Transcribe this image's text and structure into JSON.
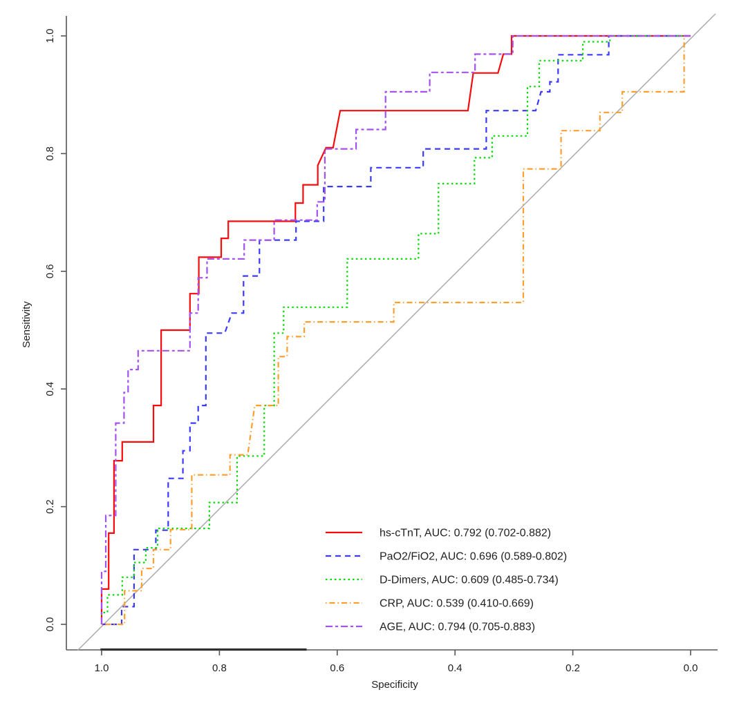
{
  "figure": {
    "background": "#ffffff",
    "axis_color": "#555555",
    "text_color": "#1f1f1f"
  },
  "chart_data": {
    "type": "line",
    "subtype": "roc-curves",
    "title": "",
    "grid": false,
    "legend_position": "inside-bottom-right",
    "x_axis": {
      "label": "Specificity",
      "ticks": [
        "1.0",
        "0.8",
        "0.6",
        "0.4",
        "0.2",
        "0.0"
      ],
      "tick_values": [
        1.0,
        0.8,
        0.6,
        0.4,
        0.2,
        0.0
      ],
      "reversed": true,
      "range": [
        1.05,
        -0.05
      ]
    },
    "y_axis": {
      "label": "Sensitivity",
      "ticks": [
        "0.0",
        "0.2",
        "0.4",
        "0.6",
        "0.8",
        "1.0"
      ],
      "tick_values": [
        0.0,
        0.2,
        0.4,
        0.6,
        0.8,
        1.0
      ],
      "range": [
        -0.05,
        1.05
      ]
    },
    "reference_line": {
      "type": "diagonal-chance-line",
      "color": "#ABABAB"
    },
    "baseline_segment": {
      "spec_from": 1.002,
      "spec_to": 0.652,
      "color": "#2F2F2F",
      "note": "dark thick segment drawn over x-axis"
    },
    "series": [
      {
        "name": "hs-cTnT",
        "legend_label": "hs-cTnT, AUC: 0.792 (0.702-0.882)",
        "auc": 0.792,
        "ci_low": 0.702,
        "ci_high": 0.882,
        "color": "#FA0A0A",
        "linetype": "solid",
        "points": [
          [
            1,
            0
          ],
          [
            1,
            0.06
          ],
          [
            0.988,
            0.06
          ],
          [
            0.988,
            0.155
          ],
          [
            0.979,
            0.155
          ],
          [
            0.979,
            0.278
          ],
          [
            0.965,
            0.278
          ],
          [
            0.965,
            0.31
          ],
          [
            0.912,
            0.31
          ],
          [
            0.912,
            0.372
          ],
          [
            0.899,
            0.372
          ],
          [
            0.899,
            0.5
          ],
          [
            0.85,
            0.5
          ],
          [
            0.85,
            0.562
          ],
          [
            0.835,
            0.562
          ],
          [
            0.835,
            0.624
          ],
          [
            0.797,
            0.624
          ],
          [
            0.797,
            0.656
          ],
          [
            0.785,
            0.656
          ],
          [
            0.785,
            0.685
          ],
          [
            0.671,
            0.685
          ],
          [
            0.671,
            0.716
          ],
          [
            0.658,
            0.716
          ],
          [
            0.658,
            0.747
          ],
          [
            0.633,
            0.747
          ],
          [
            0.633,
            0.78
          ],
          [
            0.619,
            0.81
          ],
          [
            0.607,
            0.81
          ],
          [
            0.595,
            0.873
          ],
          [
            0.378,
            0.873
          ],
          [
            0.369,
            0.937
          ],
          [
            0.327,
            0.937
          ],
          [
            0.318,
            0.969
          ],
          [
            0.304,
            0.969
          ],
          [
            0.304,
            1
          ],
          [
            0,
            1
          ]
        ]
      },
      {
        "name": "PaO2/FiO2",
        "legend_label": "PaO2/FiO2, AUC: 0.696 (0.589-0.802)",
        "auc": 0.696,
        "ci_low": 0.589,
        "ci_high": 0.802,
        "color": "#3939FF",
        "linetype": "dashed",
        "points": [
          [
            1,
            0
          ],
          [
            0.966,
            0
          ],
          [
            0.966,
            0.03
          ],
          [
            0.945,
            0.03
          ],
          [
            0.945,
            0.127
          ],
          [
            0.908,
            0.127
          ],
          [
            0.908,
            0.16
          ],
          [
            0.887,
            0.16
          ],
          [
            0.887,
            0.248
          ],
          [
            0.862,
            0.248
          ],
          [
            0.862,
            0.295
          ],
          [
            0.85,
            0.295
          ],
          [
            0.85,
            0.342
          ],
          [
            0.836,
            0.342
          ],
          [
            0.836,
            0.372
          ],
          [
            0.823,
            0.372
          ],
          [
            0.823,
            0.495
          ],
          [
            0.791,
            0.495
          ],
          [
            0.779,
            0.529
          ],
          [
            0.759,
            0.529
          ],
          [
            0.759,
            0.592
          ],
          [
            0.732,
            0.592
          ],
          [
            0.732,
            0.653
          ],
          [
            0.67,
            0.653
          ],
          [
            0.67,
            0.685
          ],
          [
            0.623,
            0.685
          ],
          [
            0.623,
            0.744
          ],
          [
            0.543,
            0.744
          ],
          [
            0.543,
            0.776
          ],
          [
            0.454,
            0.776
          ],
          [
            0.454,
            0.808
          ],
          [
            0.347,
            0.808
          ],
          [
            0.347,
            0.873
          ],
          [
            0.263,
            0.873
          ],
          [
            0.254,
            0.905
          ],
          [
            0.239,
            0.905
          ],
          [
            0.239,
            0.922
          ],
          [
            0.225,
            0.922
          ],
          [
            0.225,
            0.968
          ],
          [
            0.139,
            0.968
          ],
          [
            0.139,
            1
          ],
          [
            0,
            1
          ]
        ]
      },
      {
        "name": "D-Dimers",
        "legend_label": "D-Dimers, AUC: 0.609 (0.485-0.734)",
        "auc": 0.609,
        "ci_low": 0.485,
        "ci_high": 0.734,
        "color": "#00DC00",
        "linetype": "dotted",
        "points": [
          [
            1,
            0
          ],
          [
            1,
            0.02
          ],
          [
            0.99,
            0.02
          ],
          [
            0.99,
            0.05
          ],
          [
            0.965,
            0.05
          ],
          [
            0.965,
            0.08
          ],
          [
            0.945,
            0.08
          ],
          [
            0.945,
            0.105
          ],
          [
            0.925,
            0.105
          ],
          [
            0.925,
            0.13
          ],
          [
            0.905,
            0.13
          ],
          [
            0.905,
            0.163
          ],
          [
            0.817,
            0.163
          ],
          [
            0.817,
            0.207
          ],
          [
            0.77,
            0.207
          ],
          [
            0.77,
            0.286
          ],
          [
            0.724,
            0.286
          ],
          [
            0.724,
            0.372
          ],
          [
            0.707,
            0.372
          ],
          [
            0.707,
            0.495
          ],
          [
            0.691,
            0.495
          ],
          [
            0.691,
            0.539
          ],
          [
            0.583,
            0.539
          ],
          [
            0.583,
            0.621
          ],
          [
            0.462,
            0.621
          ],
          [
            0.462,
            0.664
          ],
          [
            0.428,
            0.664
          ],
          [
            0.428,
            0.749
          ],
          [
            0.367,
            0.749
          ],
          [
            0.367,
            0.793
          ],
          [
            0.337,
            0.793
          ],
          [
            0.337,
            0.83
          ],
          [
            0.277,
            0.83
          ],
          [
            0.277,
            0.914
          ],
          [
            0.257,
            0.914
          ],
          [
            0.257,
            0.958
          ],
          [
            0.183,
            0.958
          ],
          [
            0.183,
            0.99
          ],
          [
            0.137,
            0.99
          ],
          [
            0.137,
            1
          ],
          [
            0,
            1
          ]
        ]
      },
      {
        "name": "CRP",
        "legend_label": "CRP, AUC: 0.539 (0.410-0.669)",
        "auc": 0.539,
        "ci_low": 0.41,
        "ci_high": 0.669,
        "color": "#FF9E2C",
        "linetype": "dotdash",
        "points": [
          [
            1,
            0
          ],
          [
            0.961,
            0
          ],
          [
            0.961,
            0.057
          ],
          [
            0.932,
            0.057
          ],
          [
            0.932,
            0.095
          ],
          [
            0.912,
            0.095
          ],
          [
            0.912,
            0.127
          ],
          [
            0.883,
            0.127
          ],
          [
            0.883,
            0.161
          ],
          [
            0.847,
            0.161
          ],
          [
            0.847,
            0.254
          ],
          [
            0.782,
            0.254
          ],
          [
            0.782,
            0.288
          ],
          [
            0.752,
            0.288
          ],
          [
            0.74,
            0.372
          ],
          [
            0.7,
            0.372
          ],
          [
            0.7,
            0.455
          ],
          [
            0.685,
            0.455
          ],
          [
            0.685,
            0.489
          ],
          [
            0.656,
            0.489
          ],
          [
            0.656,
            0.514
          ],
          [
            0.504,
            0.514
          ],
          [
            0.504,
            0.547
          ],
          [
            0.284,
            0.547
          ],
          [
            0.284,
            0.774
          ],
          [
            0.22,
            0.774
          ],
          [
            0.22,
            0.839
          ],
          [
            0.154,
            0.839
          ],
          [
            0.154,
            0.87
          ],
          [
            0.116,
            0.87
          ],
          [
            0.116,
            0.905
          ],
          [
            0.011,
            0.905
          ],
          [
            0.011,
            1
          ],
          [
            0,
            1
          ]
        ]
      },
      {
        "name": "AGE",
        "legend_label": "AGE, AUC: 0.794 (0.705-0.883)",
        "auc": 0.794,
        "ci_low": 0.705,
        "ci_high": 0.883,
        "color": "#A551EE",
        "linetype": "twodash",
        "points": [
          [
            1,
            0
          ],
          [
            1,
            0.09
          ],
          [
            0.993,
            0.09
          ],
          [
            0.993,
            0.185
          ],
          [
            0.976,
            0.185
          ],
          [
            0.976,
            0.342
          ],
          [
            0.962,
            0.342
          ],
          [
            0.962,
            0.394
          ],
          [
            0.955,
            0.394
          ],
          [
            0.955,
            0.433
          ],
          [
            0.938,
            0.433
          ],
          [
            0.938,
            0.465
          ],
          [
            0.85,
            0.465
          ],
          [
            0.85,
            0.529
          ],
          [
            0.836,
            0.529
          ],
          [
            0.836,
            0.589
          ],
          [
            0.821,
            0.589
          ],
          [
            0.821,
            0.621
          ],
          [
            0.758,
            0.621
          ],
          [
            0.758,
            0.653
          ],
          [
            0.707,
            0.653
          ],
          [
            0.707,
            0.687
          ],
          [
            0.634,
            0.687
          ],
          [
            0.634,
            0.718
          ],
          [
            0.621,
            0.718
          ],
          [
            0.621,
            0.808
          ],
          [
            0.568,
            0.808
          ],
          [
            0.568,
            0.841
          ],
          [
            0.518,
            0.841
          ],
          [
            0.518,
            0.905
          ],
          [
            0.443,
            0.905
          ],
          [
            0.443,
            0.938
          ],
          [
            0.366,
            0.938
          ],
          [
            0.366,
            0.969
          ],
          [
            0.302,
            0.969
          ],
          [
            0.302,
            1
          ],
          [
            0,
            1
          ]
        ]
      }
    ]
  }
}
